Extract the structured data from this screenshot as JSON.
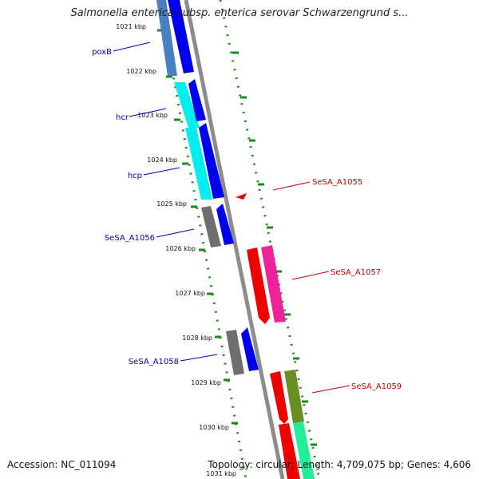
{
  "title": "Salmonella enterica subsp. enterica serovar Schwarzengrund s...",
  "accession": "Accession: NC_011094",
  "summary": "Topology: circular; Length: 4,709,075 bp; Genes: 4,606",
  "ticks": [
    {
      "label": "1021 kbp"
    },
    {
      "label": "1022 kbp"
    },
    {
      "label": "1023 kbp"
    },
    {
      "label": "1024 kbp"
    },
    {
      "label": "1025 kbp"
    },
    {
      "label": "1026 kbp"
    },
    {
      "label": "1027 kbp"
    },
    {
      "label": "1028 kbp"
    },
    {
      "label": "1029 kbp"
    },
    {
      "label": "1030 kbp"
    },
    {
      "label": "1031 kbp"
    }
  ],
  "gene_labels_left": [
    {
      "name": "poxB",
      "color": "#0000bb"
    },
    {
      "name": "hcr",
      "color": "#0000bb"
    },
    {
      "name": "hcp",
      "color": "#0000bb"
    },
    {
      "name": "SeSA_A1056",
      "color": "#0000bb"
    },
    {
      "name": "SeSA_A1058",
      "color": "#0000bb"
    }
  ],
  "gene_labels_right": [
    {
      "name": "SeSA_A1055",
      "color": "#cc0000"
    },
    {
      "name": "SeSA_A1057",
      "color": "#cc0000"
    },
    {
      "name": "SeSA_A1059",
      "color": "#cc0000"
    }
  ],
  "colors": {
    "backbone": "#8c8c8c",
    "forward_cds": "#0000ee",
    "reverse_cds": "#ee0000",
    "tick_green": "#1a8a1a",
    "cyan": "#00eeee",
    "grey": "#6e6e6e",
    "steelblue": "#4a7fc0",
    "pink": "#ee2299",
    "olive": "#6b8e23",
    "mint": "#22ee99"
  }
}
